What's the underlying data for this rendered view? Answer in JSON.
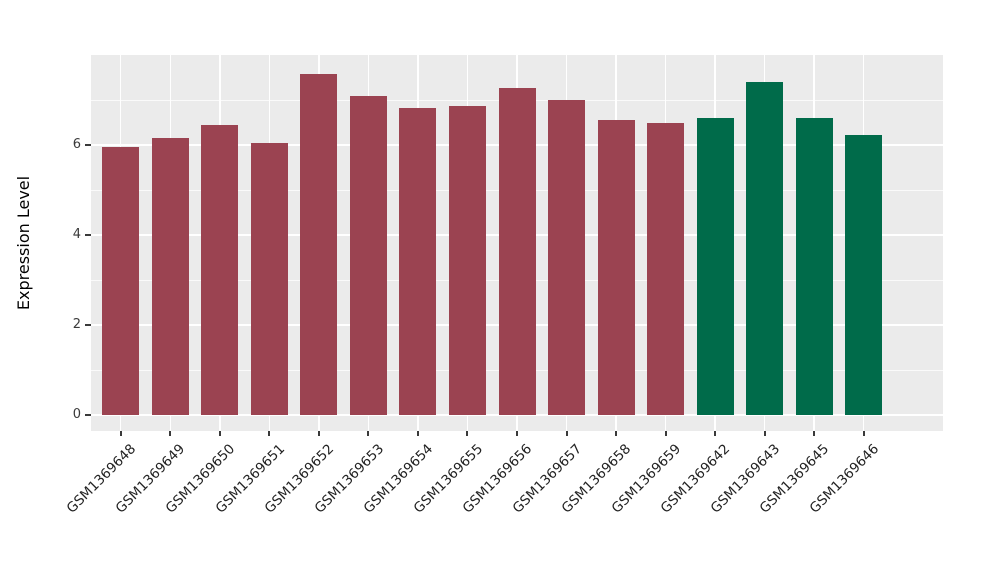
{
  "chart_data": {
    "type": "bar",
    "title": "",
    "ylabel": "Expression Level",
    "xlabel": "",
    "categories": [
      "GSM1369648",
      "GSM1369649",
      "GSM1369650",
      "GSM1369651",
      "GSM1369652",
      "GSM1369653",
      "GSM1369654",
      "GSM1369655",
      "GSM1369656",
      "GSM1369657",
      "GSM1369658",
      "GSM1369659",
      "GSM1369642",
      "GSM1369643",
      "GSM1369645",
      "GSM1369646"
    ],
    "values": [
      5.95,
      6.16,
      6.45,
      6.05,
      7.58,
      7.09,
      6.82,
      6.87,
      7.27,
      7.0,
      6.56,
      6.5,
      6.6,
      7.41,
      6.6,
      6.22
    ],
    "bar_colors": [
      "#9B4351",
      "#9B4351",
      "#9B4351",
      "#9B4351",
      "#9B4351",
      "#9B4351",
      "#9B4351",
      "#9B4351",
      "#9B4351",
      "#9B4351",
      "#9B4351",
      "#9B4351",
      "#006B4A",
      "#006B4A",
      "#006B4A",
      "#006B4A"
    ],
    "group_colors": {
      "maroon_group": "#9B4351",
      "green_group": "#006B4A"
    },
    "ylim": [
      0,
      8
    ],
    "yticks": [
      0,
      2,
      4,
      6
    ],
    "ytick_labels": [
      "0",
      "2",
      "4",
      "6"
    ],
    "y_minor_gridlines": [
      1,
      3,
      5,
      7
    ],
    "grid": true,
    "legend_position": "none",
    "panel_background": "#EBEBEB",
    "gridline_color": "#FFFFFF"
  }
}
